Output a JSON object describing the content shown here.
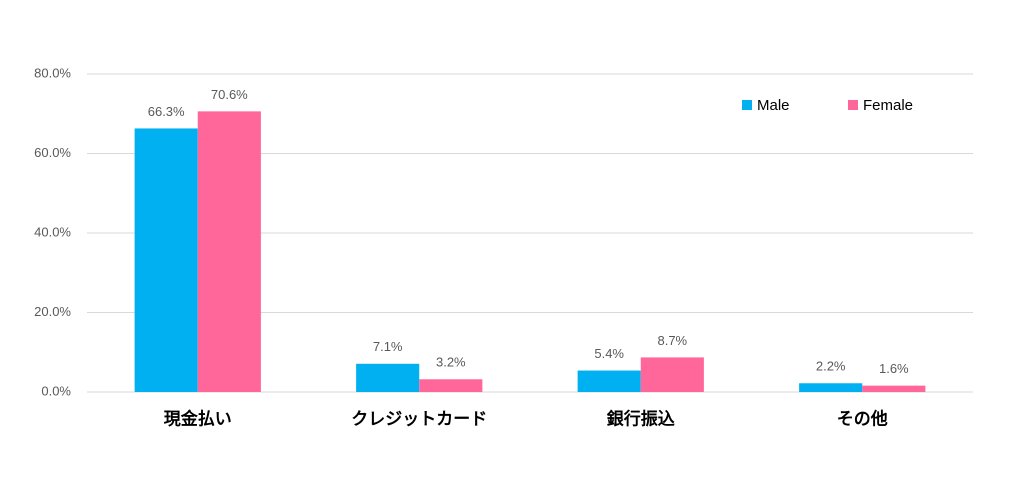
{
  "chart_data": {
    "type": "bar",
    "categories": [
      "現金払い",
      "クレジットカード",
      "銀行振込",
      "その他"
    ],
    "series": [
      {
        "name": "Male",
        "color": "#00b0f0",
        "values": [
          66.3,
          7.1,
          5.4,
          2.2
        ],
        "value_labels": [
          "66.3%",
          "7.1%",
          "5.4%",
          "2.2%"
        ]
      },
      {
        "name": "Female",
        "color": "#ff6699",
        "values": [
          70.6,
          3.2,
          8.7,
          1.6
        ],
        "value_labels": [
          "70.6%",
          "3.2%",
          "8.7%",
          "1.6%"
        ]
      }
    ],
    "ylim": [
      0,
      80
    ],
    "yticks": [
      {
        "value": 0,
        "label": "0.0%"
      },
      {
        "value": 20,
        "label": "20.0%"
      },
      {
        "value": 40,
        "label": "40.0%"
      },
      {
        "value": 60,
        "label": "60.0%"
      },
      {
        "value": 80,
        "label": "80.0%"
      }
    ],
    "grid": true,
    "legend": "upper right"
  }
}
